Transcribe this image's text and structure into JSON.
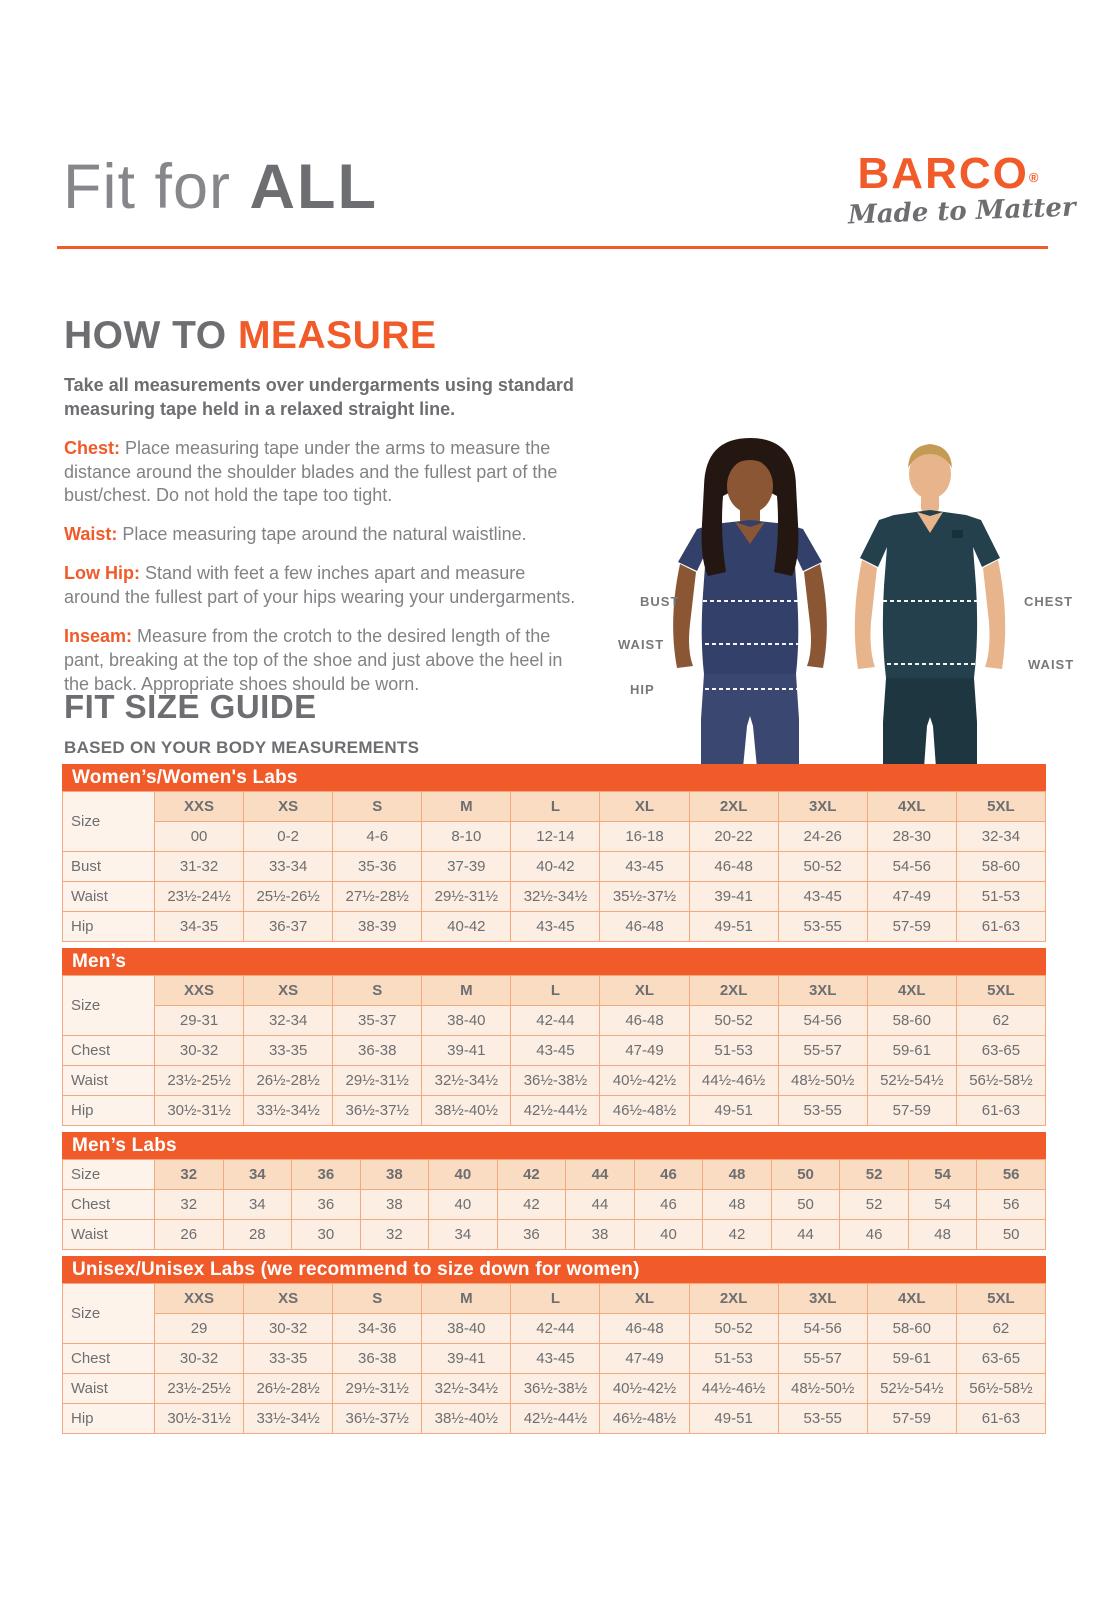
{
  "page": {
    "title_light": "Fit for",
    "title_bold": "ALL"
  },
  "brand": {
    "name": "BARCO",
    "registered": "®",
    "tagline": "Made to Matter",
    "accent_color": "#f15a29"
  },
  "how_to_measure": {
    "heading_gray": "HOW TO ",
    "heading_orange": "MEASURE",
    "intro": "Take all measurements over undergarments using standard measuring tape held in a relaxed straight line.",
    "items": [
      {
        "label": "Chest:",
        "text": " Place measuring tape under the arms to measure the distance around the shoulder blades and the fullest part of the bust/chest. Do not hold the tape too tight."
      },
      {
        "label": "Waist:",
        "text": " Place measuring tape around the natural waistline."
      },
      {
        "label": "Low Hip:",
        "text": " Stand with feet a few inches apart and measure around the fullest part of your hips wearing your undergarments."
      },
      {
        "label": "Inseam:",
        "text": " Measure from the crotch to the desired length of the pant, breaking at the top of the shoe and just above the heel in the back. Appropriate shoes should be worn."
      }
    ]
  },
  "figure": {
    "female_labels": [
      "BUST",
      "WAIST",
      "HIP"
    ],
    "male_labels": [
      "CHEST",
      "WAIST"
    ]
  },
  "size_guide": {
    "heading": "FIT SIZE GUIDE",
    "subheading": "BASED ON YOUR BODY MEASUREMENTS",
    "tables": [
      {
        "title": "Women’s/Women's Labs",
        "rows": [
          {
            "label": "Size",
            "label_rowspan": 2,
            "type": "header",
            "cells": [
              "XXS",
              "XS",
              "S",
              "M",
              "L",
              "XL",
              "2XL",
              "3XL",
              "4XL",
              "5XL"
            ]
          },
          {
            "type": "data",
            "cells": [
              "00",
              "0-2",
              "4-6",
              "8-10",
              "12-14",
              "16-18",
              "20-22",
              "24-26",
              "28-30",
              "32-34"
            ]
          },
          {
            "label": "Bust",
            "type": "data",
            "cells": [
              "31-32",
              "33-34",
              "35-36",
              "37-39",
              "40-42",
              "43-45",
              "46-48",
              "50-52",
              "54-56",
              "58-60"
            ]
          },
          {
            "label": "Waist",
            "type": "data",
            "cells": [
              "23½-24½",
              "25½-26½",
              "27½-28½",
              "29½-31½",
              "32½-34½",
              "35½-37½",
              "39-41",
              "43-45",
              "47-49",
              "51-53"
            ]
          },
          {
            "label": "Hip",
            "type": "data",
            "cells": [
              "34-35",
              "36-37",
              "38-39",
              "40-42",
              "43-45",
              "46-48",
              "49-51",
              "53-55",
              "57-59",
              "61-63"
            ]
          }
        ]
      },
      {
        "title": "Men’s",
        "rows": [
          {
            "label": "Size",
            "label_rowspan": 2,
            "type": "header",
            "cells": [
              "XXS",
              "XS",
              "S",
              "M",
              "L",
              "XL",
              "2XL",
              "3XL",
              "4XL",
              "5XL"
            ]
          },
          {
            "type": "data",
            "cells": [
              "29-31",
              "32-34",
              "35-37",
              "38-40",
              "42-44",
              "46-48",
              "50-52",
              "54-56",
              "58-60",
              "62"
            ]
          },
          {
            "label": "Chest",
            "type": "data",
            "cells": [
              "30-32",
              "33-35",
              "36-38",
              "39-41",
              "43-45",
              "47-49",
              "51-53",
              "55-57",
              "59-61",
              "63-65"
            ]
          },
          {
            "label": "Waist",
            "type": "data",
            "cells": [
              "23½-25½",
              "26½-28½",
              "29½-31½",
              "32½-34½",
              "36½-38½",
              "40½-42½",
              "44½-46½",
              "48½-50½",
              "52½-54½",
              "56½-58½"
            ]
          },
          {
            "label": "Hip",
            "type": "data",
            "cells": [
              "30½-31½",
              "33½-34½",
              "36½-37½",
              "38½-40½",
              "42½-44½",
              "46½-48½",
              "49-51",
              "53-55",
              "57-59",
              "61-63"
            ]
          }
        ]
      },
      {
        "title": "Men’s Labs",
        "rows": [
          {
            "label": "Size",
            "type": "header",
            "cells": [
              "32",
              "34",
              "36",
              "38",
              "40",
              "42",
              "44",
              "46",
              "48",
              "50",
              "52",
              "54",
              "56"
            ]
          },
          {
            "label": "Chest",
            "type": "data",
            "cells": [
              "32",
              "34",
              "36",
              "38",
              "40",
              "42",
              "44",
              "46",
              "48",
              "50",
              "52",
              "54",
              "56"
            ]
          },
          {
            "label": "Waist",
            "type": "data",
            "cells": [
              "26",
              "28",
              "30",
              "32",
              "34",
              "36",
              "38",
              "40",
              "42",
              "44",
              "46",
              "48",
              "50"
            ]
          }
        ]
      },
      {
        "title": "Unisex/Unisex Labs (we recommend to size down for women)",
        "rows": [
          {
            "label": "Size",
            "label_rowspan": 2,
            "type": "header",
            "cells": [
              "XXS",
              "XS",
              "S",
              "M",
              "L",
              "XL",
              "2XL",
              "3XL",
              "4XL",
              "5XL"
            ]
          },
          {
            "type": "data",
            "cells": [
              "29",
              "30-32",
              "34-36",
              "38-40",
              "42-44",
              "46-48",
              "50-52",
              "54-56",
              "58-60",
              "62"
            ]
          },
          {
            "label": "Chest",
            "type": "data",
            "cells": [
              "30-32",
              "33-35",
              "36-38",
              "39-41",
              "43-45",
              "47-49",
              "51-53",
              "55-57",
              "59-61",
              "63-65"
            ]
          },
          {
            "label": "Waist",
            "type": "data",
            "cells": [
              "23½-25½",
              "26½-28½",
              "29½-31½",
              "32½-34½",
              "36½-38½",
              "40½-42½",
              "44½-46½",
              "48½-50½",
              "52½-54½",
              "56½-58½"
            ]
          },
          {
            "label": "Hip",
            "type": "data",
            "cells": [
              "30½-31½",
              "33½-34½",
              "36½-37½",
              "38½-40½",
              "42½-44½",
              "46½-48½",
              "49-51",
              "53-55",
              "57-59",
              "61-63"
            ]
          }
        ]
      }
    ]
  }
}
